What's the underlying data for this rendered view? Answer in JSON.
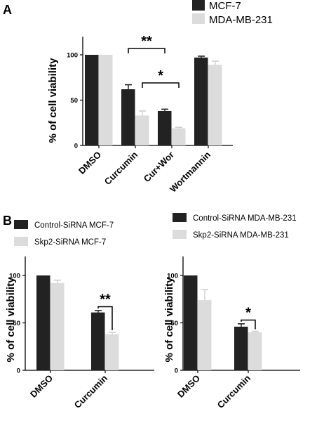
{
  "panels": {
    "A": {
      "letter": "A"
    },
    "B": {
      "letter": "B"
    }
  },
  "colors": {
    "dark": "#222222",
    "light": "#dcdcdc"
  },
  "chart_data": [
    {
      "type": "bar",
      "panel": "A",
      "categories": [
        "DMSO",
        "Curcumin",
        "Cur+Wor",
        "Wortmannin"
      ],
      "series": [
        {
          "name": "MCF-7",
          "color": "#222222",
          "values": [
            100,
            62,
            38,
            97
          ],
          "errors": [
            0,
            5,
            2,
            1.5
          ]
        },
        {
          "name": "MDA-MB-231",
          "color": "#dcdcdc",
          "values": [
            100,
            33,
            19,
            89
          ],
          "errors": [
            0,
            5,
            1,
            4
          ]
        }
      ],
      "ylabel": "% of cell viability",
      "ylim": [
        0,
        120
      ],
      "yticks": [
        0,
        50,
        100
      ],
      "legend": "top-right",
      "significance": [
        {
          "label": "**",
          "between": [
            "Curcumin.MCF-7",
            "Cur+Wor.MCF-7"
          ],
          "height": 107
        },
        {
          "label": "*",
          "between": [
            "Curcumin.MDA-MB-231",
            "Cur+Wor.MDA-MB-231"
          ],
          "height": 69
        }
      ]
    },
    {
      "type": "bar",
      "panel": "B-left",
      "categories": [
        "DMSO",
        "Curcumin"
      ],
      "series": [
        {
          "name": "Control-SiRNA MCF-7",
          "color": "#222222",
          "values": [
            100,
            61
          ],
          "errors": [
            0,
            2
          ]
        },
        {
          "name": "Skp2-SiRNA MCF-7",
          "color": "#dcdcdc",
          "values": [
            92,
            38
          ],
          "errors": [
            3,
            2
          ]
        }
      ],
      "ylabel": "% of cell viability",
      "ylim": [
        0,
        120
      ],
      "yticks": [
        0,
        50,
        100
      ],
      "legend": "top",
      "significance": [
        {
          "label": "**",
          "between": [
            "Curcumin.Control-SiRNA MCF-7",
            "Curcumin.Skp2-SiRNA MCF-7"
          ],
          "height": 67
        }
      ]
    },
    {
      "type": "bar",
      "panel": "B-right",
      "categories": [
        "DMSO",
        "Curcumin"
      ],
      "series": [
        {
          "name": "Control-SiRNA MDA-MB-231",
          "color": "#222222",
          "values": [
            100,
            46
          ],
          "errors": [
            0,
            3
          ]
        },
        {
          "name": "Skp2-SiRNA MDA-MB-231",
          "color": "#dcdcdc",
          "values": [
            74,
            40
          ],
          "errors": [
            11,
            1
          ]
        }
      ],
      "ylabel": "% of cell viability",
      "ylim": [
        0,
        120
      ],
      "yticks": [
        0,
        50,
        100
      ],
      "legend": "top",
      "significance": [
        {
          "label": "*",
          "between": [
            "Curcumin.Control-SiRNA MDA-MB-231",
            "Curcumin.Skp2-SiRNA MDA-MB-231"
          ],
          "height": 53
        }
      ]
    }
  ]
}
